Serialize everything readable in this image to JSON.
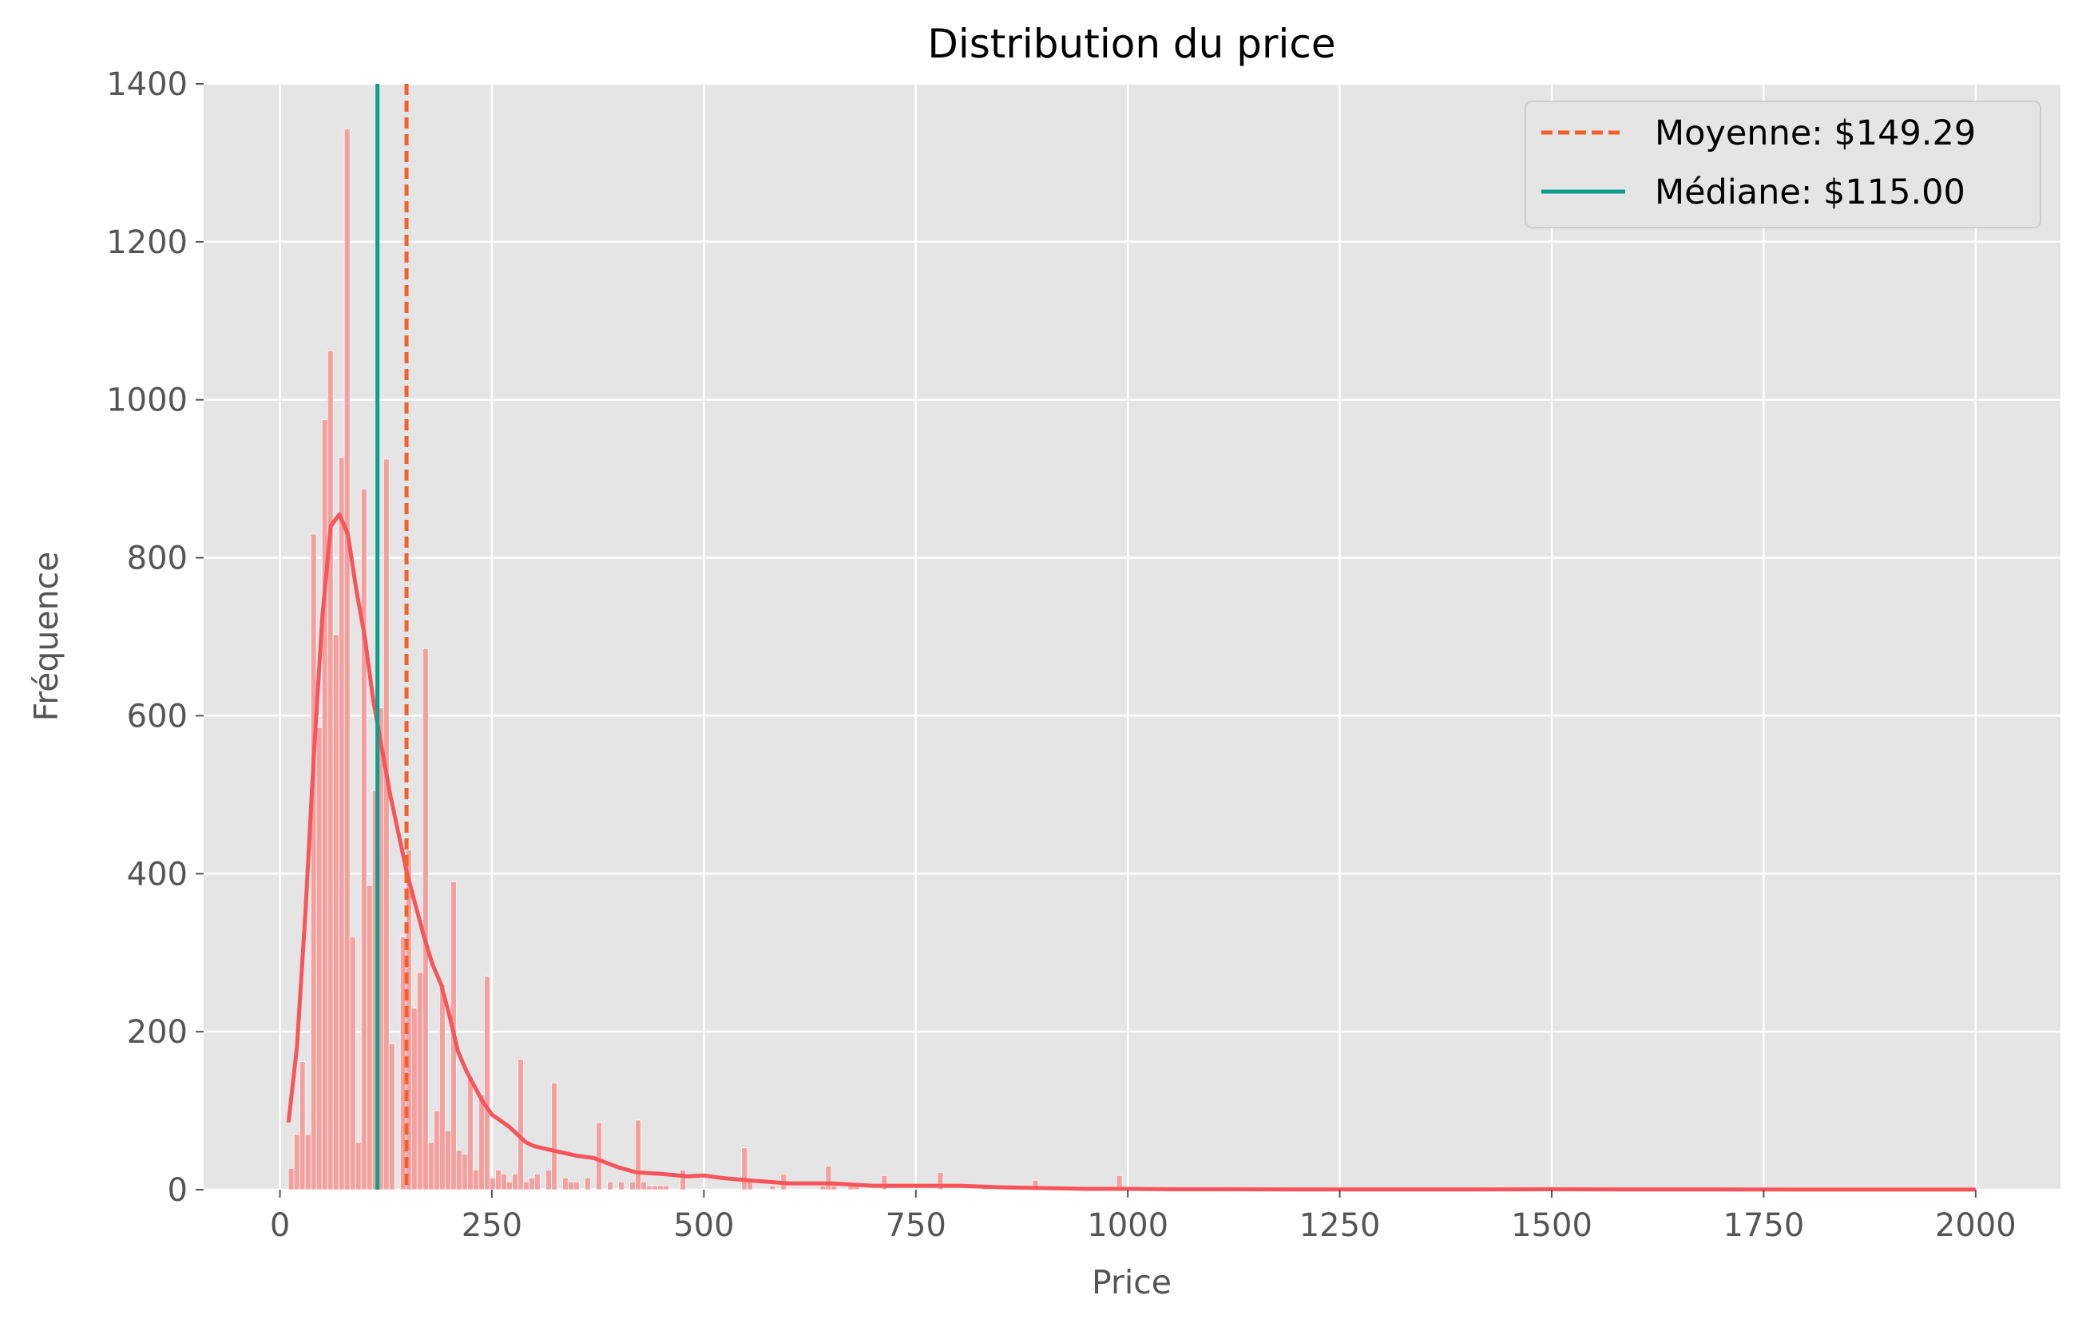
{
  "chart_data": {
    "type": "bar",
    "title": "Distribution du price",
    "xlabel": "Price",
    "ylabel": "Fréquence",
    "xlim": [
      -90,
      2100
    ],
    "ylim": [
      0,
      1400
    ],
    "x_ticks": [
      "0",
      "250",
      "500",
      "750",
      "1000",
      "1250",
      "1500",
      "1750",
      "2000"
    ],
    "y_ticks": [
      "0",
      "200",
      "400",
      "600",
      "800",
      "1000",
      "1200",
      "1400"
    ],
    "grid": true,
    "legend_position": "top-right",
    "legend": {
      "mean_label": "Moyenne: $149.29",
      "median_label": "Médiane: $115.00"
    },
    "colors": {
      "background": "#E5E5E5",
      "grid": "#FFFFFF",
      "bars": "#F4A09E",
      "kde": "#F8555B",
      "mean": "#F4602A",
      "median": "#0E9E8C"
    },
    "mean": 149.29,
    "median": 115,
    "bins": {
      "start": 10,
      "width": 6.6,
      "counts": [
        27,
        70,
        162,
        70,
        830,
        585,
        975,
        1062,
        703,
        927,
        1343,
        320,
        60,
        887,
        385,
        505,
        610,
        925,
        185,
        0,
        320,
        430,
        230,
        275,
        685,
        60,
        100,
        260,
        75,
        390,
        50,
        45,
        143,
        25,
        120,
        270,
        15,
        25,
        20,
        10,
        20,
        165,
        10,
        15,
        20,
        0,
        25,
        135,
        0,
        15,
        10,
        10,
        0,
        15,
        0,
        85,
        0,
        10,
        0,
        10,
        0,
        10,
        88,
        10,
        5,
        5,
        5,
        5,
        0,
        0,
        25,
        0,
        0,
        0,
        0,
        0,
        0,
        0,
        0,
        0,
        0,
        53,
        10,
        0,
        0,
        0,
        5,
        0,
        20,
        0,
        0,
        0,
        0,
        0,
        0,
        5,
        30,
        5,
        0,
        0,
        5,
        5,
        0,
        0,
        0,
        0,
        18,
        0,
        0,
        0,
        0,
        0,
        0,
        0,
        0,
        0,
        22,
        0,
        0,
        0,
        0,
        0,
        0,
        0,
        5,
        0,
        0,
        0,
        0,
        0,
        0,
        0,
        0,
        12,
        0,
        0,
        0,
        0,
        0,
        0,
        0,
        0,
        0,
        0,
        0,
        0,
        0,
        0,
        18
      ]
    },
    "kde": {
      "x": [
        10,
        20,
        30,
        40,
        50,
        60,
        70,
        80,
        90,
        100,
        110,
        120,
        130,
        140,
        150,
        160,
        170,
        180,
        190,
        200,
        210,
        220,
        230,
        240,
        250,
        270,
        290,
        300,
        320,
        350,
        370,
        400,
        420,
        450,
        480,
        500,
        520,
        550,
        600,
        650,
        700,
        750,
        800,
        850,
        900,
        950,
        1000,
        1050,
        1100,
        1200,
        1300,
        1400,
        1500,
        1600,
        1700,
        1800,
        1900,
        2000
      ],
      "y": [
        85,
        180,
        350,
        550,
        725,
        840,
        855,
        830,
        760,
        700,
        620,
        560,
        500,
        450,
        400,
        360,
        320,
        285,
        260,
        220,
        175,
        150,
        130,
        110,
        95,
        80,
        60,
        55,
        50,
        43,
        40,
        28,
        22,
        20,
        17,
        18,
        15,
        12,
        8,
        8,
        5,
        5,
        5,
        3,
        2,
        1,
        1,
        0.5,
        0.5,
        0.3,
        0.3,
        0.3,
        0.5,
        0.2,
        0.2,
        0.1,
        0.1,
        0.1
      ]
    }
  }
}
